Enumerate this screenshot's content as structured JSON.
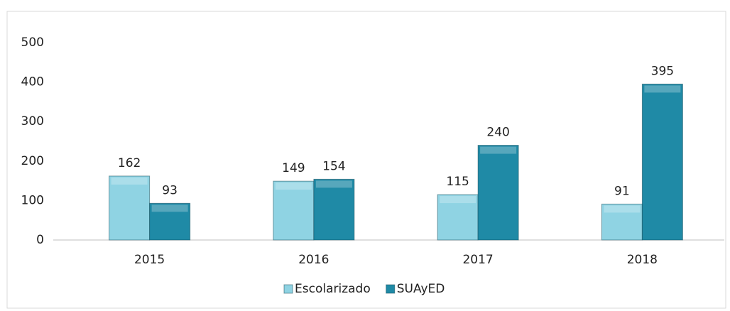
{
  "chart_data": {
    "type": "bar",
    "categories": [
      "2015",
      "2016",
      "2017",
      "2018"
    ],
    "series": [
      {
        "name": "Escolarizado",
        "color": "#8fd3e3",
        "values": [
          162,
          149,
          115,
          91
        ]
      },
      {
        "name": "SUAyED",
        "color": "#1f8aa6",
        "values": [
          93,
          154,
          240,
          395
        ]
      }
    ],
    "ylim": [
      0,
      500
    ],
    "yticks": [
      0,
      100,
      200,
      300,
      400,
      500
    ],
    "grid": false,
    "legend": "bottom"
  }
}
